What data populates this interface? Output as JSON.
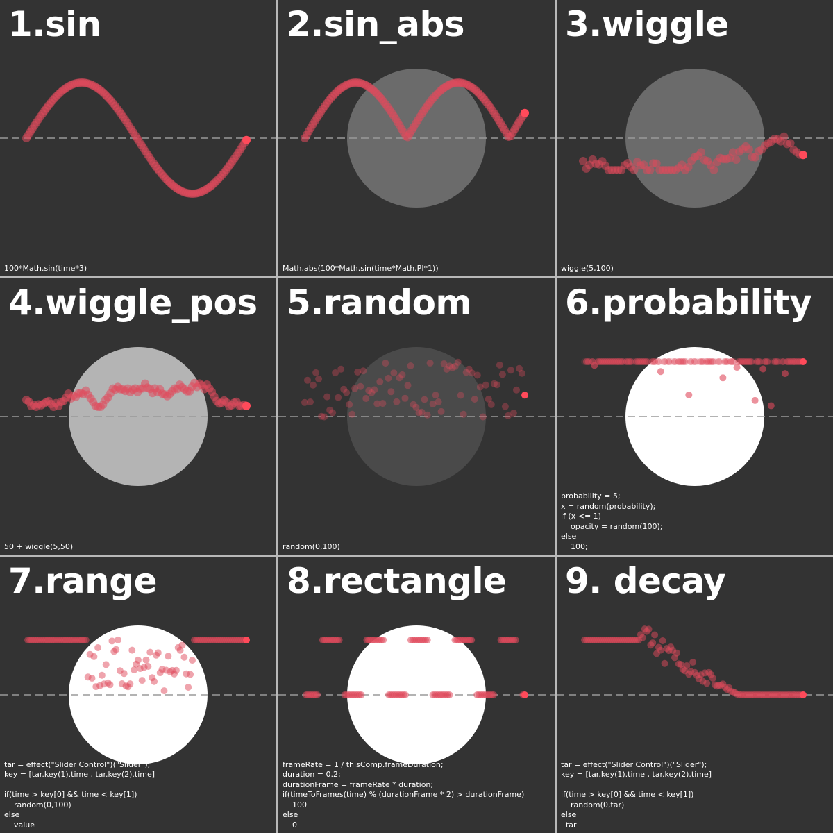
{
  "colors": {
    "background": "#333333",
    "dot": "#e04a5c",
    "dot_last": "#ff4a5a",
    "baseline": "#9a9a9a",
    "circle_dim": "#6b6b6b",
    "circle_mid": "#4a4a4a",
    "circle_light": "#b4b4b4",
    "circle_white": "#ffffff",
    "text": "#ffffff"
  },
  "panels": [
    {
      "title": "1.sin",
      "code": "100*Math.sin(time*3)",
      "circle": "none",
      "pattern": "sin"
    },
    {
      "title": "2.sin_abs",
      "code": "Math.abs(100*Math.sin(time*Math.PI*1))",
      "circle": "dim",
      "pattern": "sin_abs"
    },
    {
      "title": "3.wiggle",
      "code": "wiggle(5,100)",
      "circle": "dim",
      "pattern": "wiggle"
    },
    {
      "title": "4.wiggle_pos",
      "code": "50 + wiggle(5,50)",
      "circle": "light",
      "pattern": "wiggle_pos"
    },
    {
      "title": "5.random",
      "code": "random(0,100)",
      "circle": "mid",
      "pattern": "random"
    },
    {
      "title": "6.probability",
      "code": "probability = 5;\nx = random(probability);\nif (x <= 1)\n    opacity = random(100);\nelse\n    100;",
      "circle": "white",
      "pattern": "probability"
    },
    {
      "title": "7.range",
      "code": "tar = effect(\"Slider Control\")(\"Slider\");\nkey = [tar.key(1).time , tar.key(2).time]\n\nif(time > key[0] && time < key[1])\n    random(0,100)\nelse\n    value",
      "circle": "white",
      "pattern": "range"
    },
    {
      "title": "8.rectangle",
      "code": "frameRate = 1 / thisComp.frameDuration;\nduration = 0.2;\ndurationFrame = frameRate * duration;\nif(timeToFrames(time) % (durationFrame * 2) > durationFrame)\n    100\nelse\n    0",
      "circle": "white",
      "pattern": "rectangle"
    },
    {
      "title": "9. decay",
      "code": "tar = effect(\"Slider Control\")(\"Slider\");\nkey = [tar.key(1).time , tar.key(2).time]\n\nif(time > key[0] && time < key[1])\n    random(0,tar)\nelse\n  tar",
      "circle": "none",
      "pattern": "decay"
    }
  ]
}
